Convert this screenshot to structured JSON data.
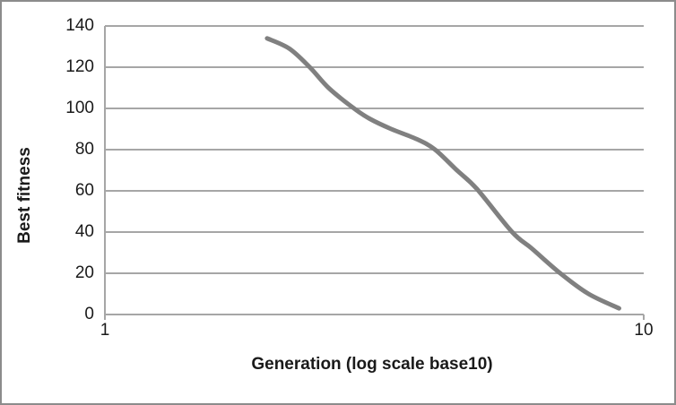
{
  "chart_data": {
    "type": "line",
    "title": "",
    "xlabel": "Generation (log scale base10)",
    "ylabel": "Best fitness",
    "x_scale": "log10",
    "xlim": [
      1,
      10
    ],
    "ylim": [
      0,
      140
    ],
    "x_tick_values": [
      1,
      10
    ],
    "x_tick_labels": [
      "1",
      "10"
    ],
    "y_tick_values": [
      0,
      20,
      40,
      60,
      80,
      100,
      120,
      140
    ],
    "y_tick_labels": [
      "0",
      "20",
      "40",
      "60",
      "80",
      "100",
      "120",
      "140"
    ],
    "grid": "horizontal-only",
    "legend_position": "none",
    "series": [
      {
        "name": "Best fitness",
        "smooth": true,
        "points": [
          [
            2.0,
            134
          ],
          [
            2.2,
            129
          ],
          [
            2.4,
            120
          ],
          [
            2.6,
            110
          ],
          [
            2.9,
            100
          ],
          [
            3.1,
            95
          ],
          [
            3.4,
            90
          ],
          [
            3.8,
            85
          ],
          [
            4.1,
            80
          ],
          [
            4.5,
            70
          ],
          [
            4.9,
            61
          ],
          [
            5.7,
            40
          ],
          [
            6.2,
            32
          ],
          [
            7.0,
            20
          ],
          [
            7.9,
            10
          ],
          [
            9.0,
            3
          ]
        ]
      }
    ]
  },
  "colors": {
    "background": "#ffffff",
    "figure_border": "#8c8c8c",
    "gridline": "#a6a6a6",
    "axis": "#a6a6a6",
    "series_line": "#808080",
    "text": "#1a1a1a"
  }
}
